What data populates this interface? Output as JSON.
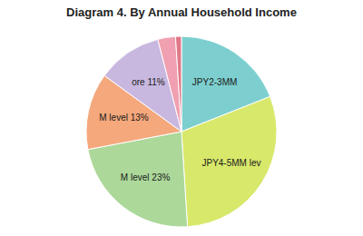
{
  "chart_data": {
    "type": "pie",
    "title": "Diagram 4.  By Annual Household Income",
    "categories": [
      "JPY2-3MM",
      "JPY4-5MM lev",
      "M level 23%",
      "M level 13%",
      "ore 11%",
      null,
      null
    ],
    "values": [
      19,
      30,
      23,
      13,
      11,
      3,
      1
    ],
    "colors": [
      "#7dcfcf",
      "#d8e86a",
      "#acd89a",
      "#f4a87c",
      "#c8b8e0",
      "#f0a0b0",
      "#e07888"
    ]
  }
}
